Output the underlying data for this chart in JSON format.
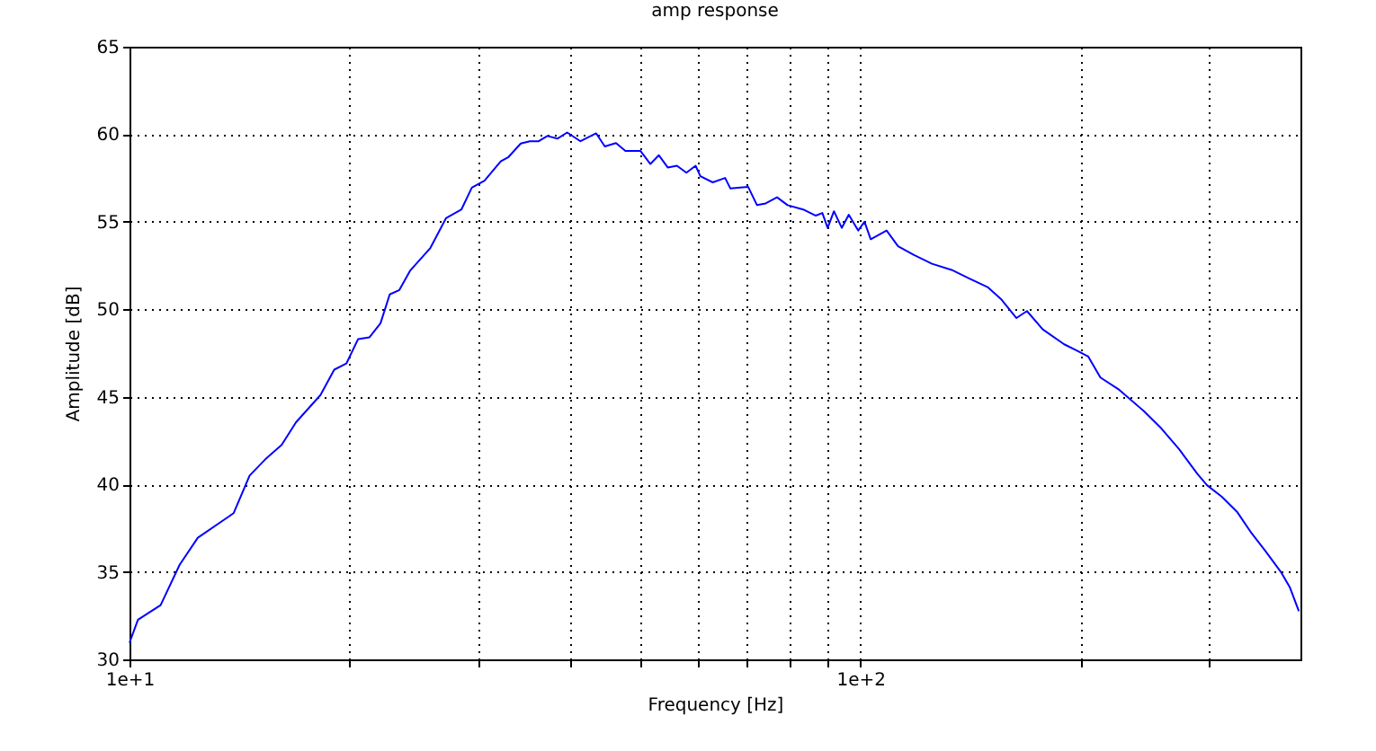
{
  "chart_data": {
    "type": "line",
    "title": "amp response",
    "xlabel": "Frequency [Hz]",
    "ylabel": "Amplitude [dB]",
    "log": "x",
    "grid": true,
    "marker": "none",
    "line_style": "solid",
    "xlim": [
      10,
      400
    ],
    "ylim": [
      30,
      65
    ],
    "xticks": [
      {
        "value": 10,
        "label": "1e+1"
      },
      {
        "value": 20,
        "label": null
      },
      {
        "value": 30,
        "label": null
      },
      {
        "value": 40,
        "label": null
      },
      {
        "value": 50,
        "label": null
      },
      {
        "value": 60,
        "label": null
      },
      {
        "value": 70,
        "label": null
      },
      {
        "value": 80,
        "label": null
      },
      {
        "value": 90,
        "label": null
      },
      {
        "value": 100,
        "label": "1e+2"
      },
      {
        "value": 200,
        "label": null
      },
      {
        "value": 300,
        "label": null
      }
    ],
    "yticks": [
      30,
      35,
      40,
      45,
      50,
      55,
      60,
      65
    ],
    "series": [
      {
        "color": "#0000ff",
        "x": [
          10,
          10.27,
          11.03,
          11.71,
          12.4,
          13.88,
          14.6,
          15.4,
          16.15,
          16.9,
          18.25,
          19.06,
          19.8,
          20.55,
          21.3,
          22.05,
          22.7,
          23.4,
          24.2,
          25.8,
          27.1,
          28.45,
          29.4,
          30.6,
          32.2,
          33.0,
          34.3,
          35.3,
          36.3,
          37.3,
          38.5,
          39.7,
          41.4,
          43.5,
          44.7,
          46.3,
          47.7,
          50.0,
          51.6,
          53.0,
          54.5,
          56.1,
          57.8,
          59.5,
          60.4,
          62.8,
          65.3,
          66.4,
          70.2,
          72.2,
          74.2,
          76.9,
          79.5,
          83.5,
          86.9,
          88.7,
          90.2,
          92,
          94.3,
          96.4,
          99.3,
          101.3,
          103.3,
          108.6,
          112.6,
          118.4,
          125.3,
          133.3,
          141,
          149.5,
          156,
          163.5,
          169,
          177.6,
          190,
          197.6,
          205,
          213,
          226,
          244,
          258,
          273,
          289,
          298,
          312,
          328,
          343,
          358,
          376,
          387,
          398
        ],
        "values": [
          30.95,
          32.26,
          33.1,
          35.4,
          36.95,
          38.35,
          40.5,
          41.5,
          42.25,
          43.55,
          45.1,
          46.55,
          46.9,
          48.3,
          48.4,
          49.2,
          50.85,
          51.1,
          52.2,
          53.5,
          55.2,
          55.7,
          56.95,
          57.35,
          58.45,
          58.7,
          59.47,
          59.6,
          59.6,
          59.9,
          59.75,
          60.1,
          59.6,
          60.05,
          59.3,
          59.5,
          59.05,
          59.05,
          58.3,
          58.8,
          58.1,
          58.2,
          57.8,
          58.2,
          57.6,
          57.25,
          57.5,
          56.9,
          57.0,
          55.95,
          56.05,
          56.4,
          55.95,
          55.7,
          55.35,
          55.5,
          54.65,
          55.6,
          54.65,
          55.4,
          54.5,
          55.0,
          54.0,
          54.5,
          53.6,
          53.1,
          52.6,
          52.25,
          51.75,
          51.25,
          50.55,
          49.5,
          49.9,
          48.85,
          48.0,
          47.65,
          47.3,
          46.1,
          45.4,
          44.2,
          43.2,
          42.0,
          40.6,
          39.95,
          39.3,
          38.4,
          37.2,
          36.2,
          35.0,
          34.1,
          32.75
        ]
      }
    ]
  }
}
